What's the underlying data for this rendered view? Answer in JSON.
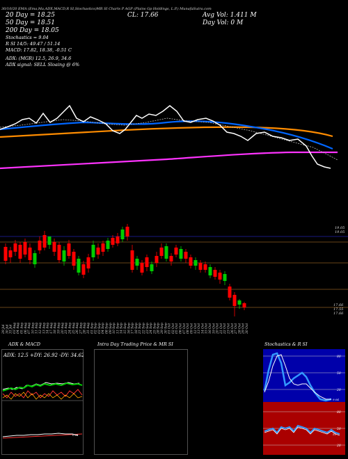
{
  "header": {
    "line1": "30/10/20 EMA (Ema,Ma,ADX,MACD,R SI,Stochastics)MR SI Charts P AGP (Plains Gp Holdings, L.P.) MunafaSutra.com",
    "left_lines": [
      "20 Day = 18.25",
      "50 Day = 18.51",
      "200 Day = 18.05",
      "Stochastics = 9.04",
      "R SI 14/5: 49.47 / 51.14",
      "MACD: 17.82, 18.38, -0.51 C"
    ],
    "cl": "CL: 17.66",
    "avg_vol": "Avg Vol: 1.411 M",
    "day_vol": "Day Vol: 0  M",
    "adx_line1": "ADX:               (MGR) 12.5, 26.9, 34.6",
    "adx_line2": "ADX  signal: SELL Sloaing @ 6%"
  },
  "price_labels": {
    "top": "19.05",
    "mid1": "17.66",
    "mid2": "17.55",
    "mid3": "17.66"
  },
  "dates": [
    "29 Jul",
    "30 Jul",
    "31 Jul",
    "03 Aug",
    "04 Aug",
    "05 Aug",
    "06 Aug",
    "07 Aug",
    "10 Aug",
    "11 Aug",
    "12 Aug",
    "13 Aug",
    "14 Aug",
    "17 Aug",
    "18 Aug",
    "19 Aug",
    "20 Aug",
    "21 Aug",
    "24 Aug",
    "25 Aug",
    "26 Aug",
    "27 Aug",
    "28 Aug",
    "31 Aug",
    "01 Sep",
    "02 Sep",
    "03 Sep",
    "04 Sep",
    "08 Sep",
    "09 Sep",
    "10 Sep",
    "11 Sep",
    "14 Sep",
    "15 Sep",
    "16 Sep",
    "17 Sep",
    "18 Sep",
    "21 Sep",
    "22 Sep",
    "23 Sep",
    "24 Sep",
    "25 Sep",
    "28 Sep",
    "29 Sep",
    "30 Sep",
    "01 Oct",
    "02 Oct",
    "05 Oct",
    "06 Oct",
    "07 Oct",
    "08 Oct",
    "09 Oct",
    "12 Oct",
    "13 Oct",
    "14 Oct",
    "15 Oct",
    "16 Oct",
    "19 Oct",
    "20 Oct",
    "21 Oct",
    "22 Oct",
    "23 Oct",
    "26 Oct",
    "27 Oct",
    "28 Oct",
    "29 Oct",
    "30 Oct"
  ],
  "panels": {
    "adx_title": "ADX  & MACD",
    "adx_values": "ADX: 12.5  +DY: 26.92  -DY: 34.62",
    "intraday_title": "Intra  Day Trading Price  & MR                  SI",
    "stoch_title": "Stochastics & R                  SI",
    "stoch_ticks": [
      "80",
      "50",
      "20"
    ],
    "stoch_last": "9.04",
    "rsi_ticks": [
      "80",
      "50",
      "20"
    ],
    "rsi_last": "51",
    "macd_label": "0.51"
  },
  "colors": {
    "up": "#00cc00",
    "down": "#ff0000",
    "ema_orange": "#ff8c00",
    "ema_blue": "#0066ff",
    "ema_magenta": "#ff33ff",
    "stoch_bg": "#0000aa",
    "rsi_bg": "#aa0000"
  }
}
